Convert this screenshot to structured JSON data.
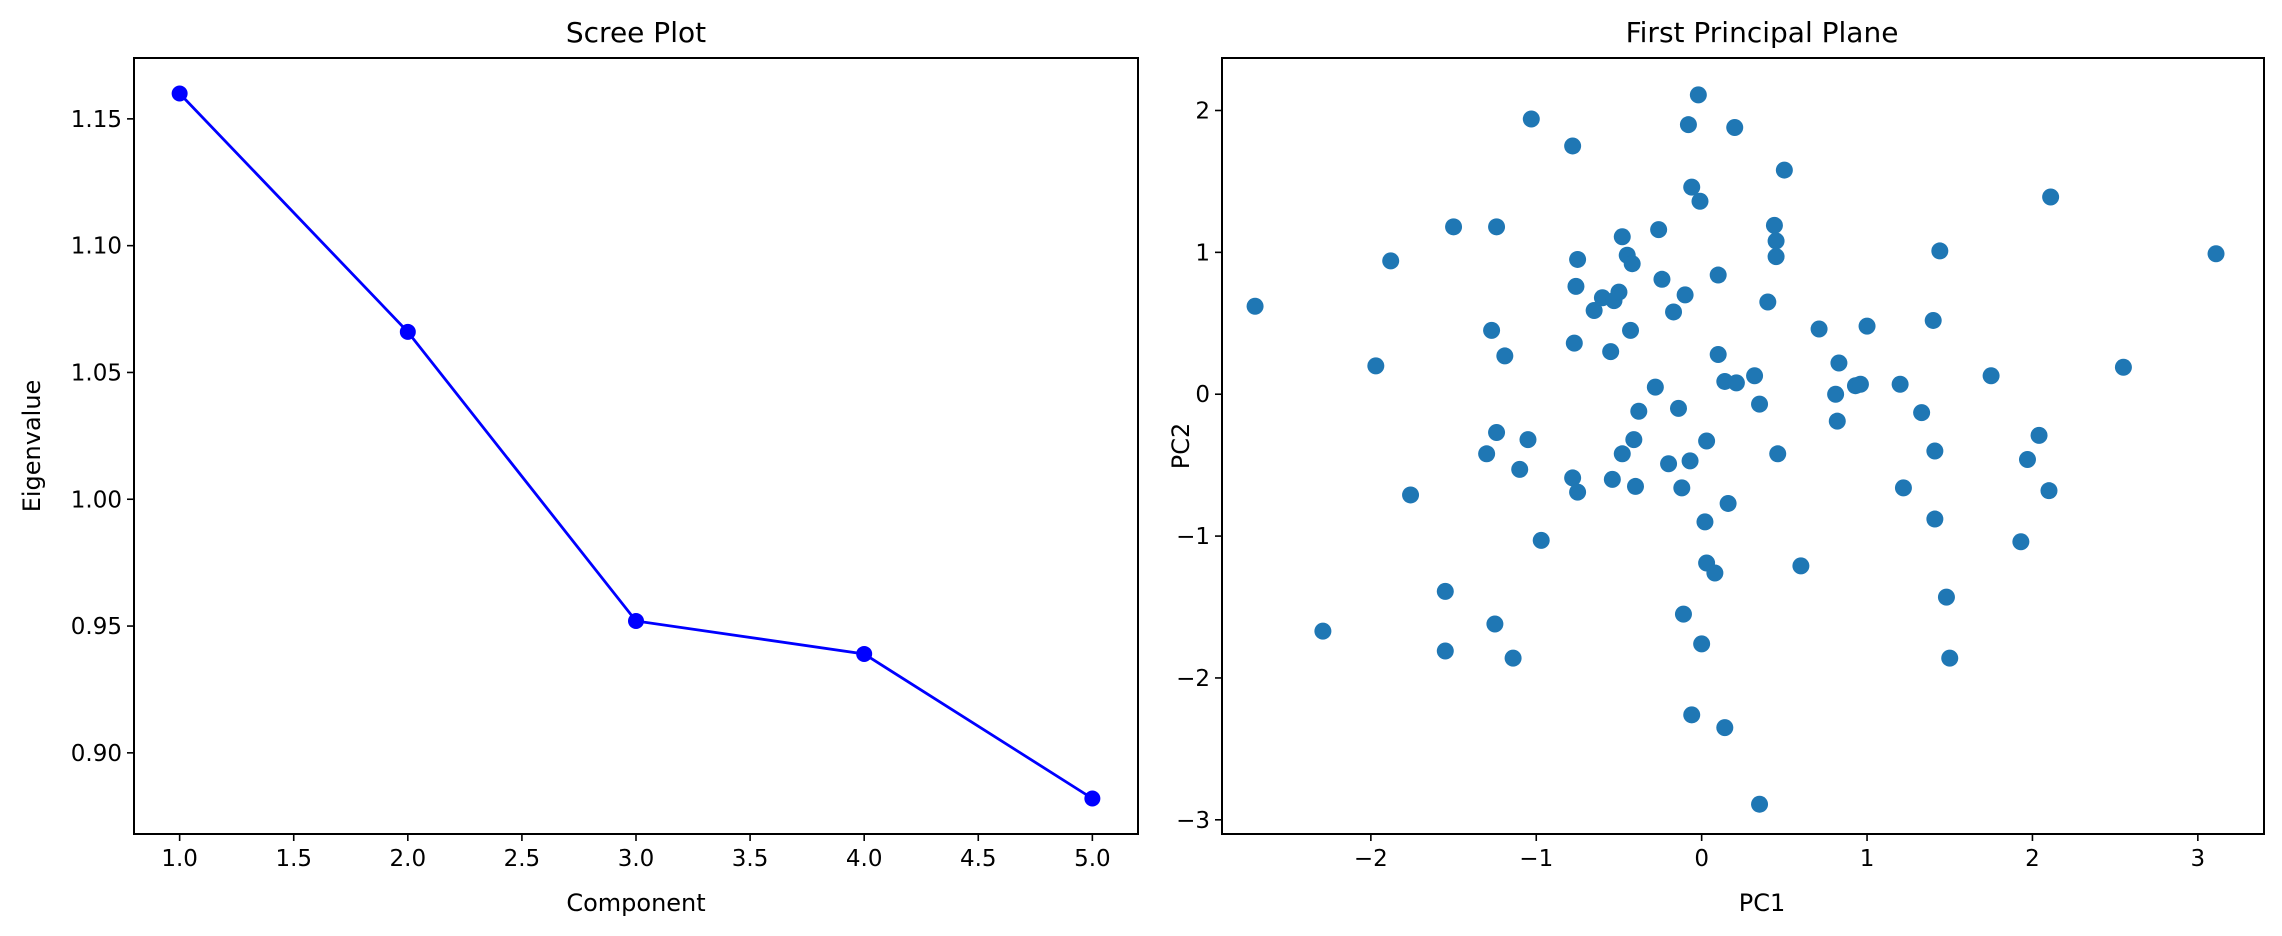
{
  "chart_data": [
    {
      "type": "line",
      "title": "Scree Plot",
      "xlabel": "Component",
      "ylabel": "Eigenvalue",
      "xlim": [
        0.8,
        5.2
      ],
      "ylim": [
        0.868,
        1.174
      ],
      "x_ticks": [
        1.0,
        1.5,
        2.0,
        2.5,
        3.0,
        3.5,
        4.0,
        4.5,
        5.0
      ],
      "x_tick_labels": [
        "1.0",
        "1.5",
        "2.0",
        "2.5",
        "3.0",
        "3.5",
        "4.0",
        "4.5",
        "5.0"
      ],
      "y_ticks": [
        0.9,
        0.95,
        1.0,
        1.05,
        1.1,
        1.15
      ],
      "y_tick_labels": [
        "0.90",
        "0.95",
        "1.00",
        "1.05",
        "1.10",
        "1.15"
      ],
      "grid": false,
      "color": "#0000ff",
      "series": [
        {
          "x": [
            1,
            2,
            3,
            4,
            5
          ],
          "values": [
            1.16,
            1.066,
            0.952,
            0.939,
            0.882
          ]
        }
      ]
    },
    {
      "type": "scatter",
      "title": "First Principal Plane",
      "xlabel": "PC1",
      "ylabel": "PC2",
      "xlim": [
        -2.9,
        3.4
      ],
      "ylim": [
        -3.1,
        2.37
      ],
      "x_ticks": [
        -2,
        -1,
        0,
        1,
        2,
        3
      ],
      "x_tick_labels": [
        "−2",
        "−1",
        "0",
        "1",
        "2",
        "3"
      ],
      "y_ticks": [
        -3,
        -2,
        -1,
        0,
        1,
        2
      ],
      "y_tick_labels": [
        "−3",
        "−2",
        "−1",
        "0",
        "1",
        "2"
      ],
      "grid": false,
      "color": "#1f77b4",
      "points": [
        [
          -2.7,
          0.62
        ],
        [
          -1.97,
          0.2
        ],
        [
          -1.88,
          0.94
        ],
        [
          -1.76,
          -0.71
        ],
        [
          -2.29,
          -1.67
        ],
        [
          -1.55,
          -1.39
        ],
        [
          -1.55,
          -1.81
        ],
        [
          -1.5,
          1.18
        ],
        [
          -1.24,
          1.18
        ],
        [
          -1.27,
          0.45
        ],
        [
          -1.19,
          0.27
        ],
        [
          -1.24,
          -0.27
        ],
        [
          -1.3,
          -0.42
        ],
        [
          -1.1,
          -0.53
        ],
        [
          -1.05,
          -0.32
        ],
        [
          -1.03,
          1.94
        ],
        [
          -1.25,
          -1.62
        ],
        [
          -1.14,
          -1.86
        ],
        [
          -0.97,
          -1.03
        ],
        [
          -0.78,
          1.75
        ],
        [
          -0.75,
          0.95
        ],
        [
          -0.76,
          0.76
        ],
        [
          -0.77,
          0.36
        ],
        [
          -0.78,
          -0.59
        ],
        [
          -0.75,
          -0.69
        ],
        [
          -0.65,
          0.59
        ],
        [
          -0.6,
          0.68
        ],
        [
          -0.53,
          0.66
        ],
        [
          -0.5,
          0.72
        ],
        [
          -0.55,
          0.3
        ],
        [
          -0.54,
          -0.6
        ],
        [
          -0.48,
          -0.42
        ],
        [
          -0.48,
          1.11
        ],
        [
          -0.45,
          0.98
        ],
        [
          -0.42,
          0.92
        ],
        [
          -0.43,
          0.45
        ],
        [
          -0.38,
          -0.12
        ],
        [
          -0.41,
          -0.32
        ],
        [
          -0.4,
          -0.65
        ],
        [
          -0.26,
          1.16
        ],
        [
          -0.24,
          0.81
        ],
        [
          -0.28,
          0.05
        ],
        [
          -0.2,
          -0.49
        ],
        [
          -0.14,
          -0.1
        ],
        [
          -0.17,
          0.58
        ],
        [
          -0.1,
          0.7
        ],
        [
          -0.08,
          1.9
        ],
        [
          -0.06,
          1.46
        ],
        [
          -0.02,
          2.11
        ],
        [
          -0.01,
          1.36
        ],
        [
          -0.12,
          -0.66
        ],
        [
          -0.07,
          -0.47
        ],
        [
          -0.11,
          -1.55
        ],
        [
          -0.06,
          -2.26
        ],
        [
          0.0,
          -1.76
        ],
        [
          0.02,
          -0.9
        ],
        [
          0.03,
          -1.19
        ],
        [
          0.03,
          -0.33
        ],
        [
          0.08,
          -1.26
        ],
        [
          0.1,
          0.84
        ],
        [
          0.1,
          0.28
        ],
        [
          0.14,
          0.09
        ],
        [
          0.14,
          -2.35
        ],
        [
          0.16,
          -0.77
        ],
        [
          0.2,
          1.88
        ],
        [
          0.21,
          0.08
        ],
        [
          0.32,
          0.13
        ],
        [
          0.35,
          -0.07
        ],
        [
          0.4,
          0.65
        ],
        [
          0.44,
          1.19
        ],
        [
          0.45,
          1.08
        ],
        [
          0.45,
          0.97
        ],
        [
          0.46,
          -0.42
        ],
        [
          0.5,
          1.58
        ],
        [
          0.35,
          -2.89
        ],
        [
          0.6,
          -1.21
        ],
        [
          0.71,
          0.46
        ],
        [
          0.81,
          0.0
        ],
        [
          0.83,
          0.22
        ],
        [
          0.82,
          -0.19
        ],
        [
          0.93,
          0.06
        ],
        [
          0.96,
          0.07
        ],
        [
          1.0,
          0.48
        ],
        [
          1.2,
          0.07
        ],
        [
          1.22,
          -0.66
        ],
        [
          1.33,
          -0.13
        ],
        [
          1.4,
          0.52
        ],
        [
          1.41,
          -0.4
        ],
        [
          1.41,
          -0.88
        ],
        [
          1.44,
          1.01
        ],
        [
          1.48,
          -1.43
        ],
        [
          1.5,
          -1.86
        ],
        [
          1.75,
          0.13
        ],
        [
          1.93,
          -1.04
        ],
        [
          1.97,
          -0.46
        ],
        [
          2.04,
          -0.29
        ],
        [
          2.1,
          -0.68
        ],
        [
          2.11,
          1.39
        ],
        [
          2.55,
          0.19
        ],
        [
          3.11,
          0.99
        ]
      ]
    }
  ]
}
